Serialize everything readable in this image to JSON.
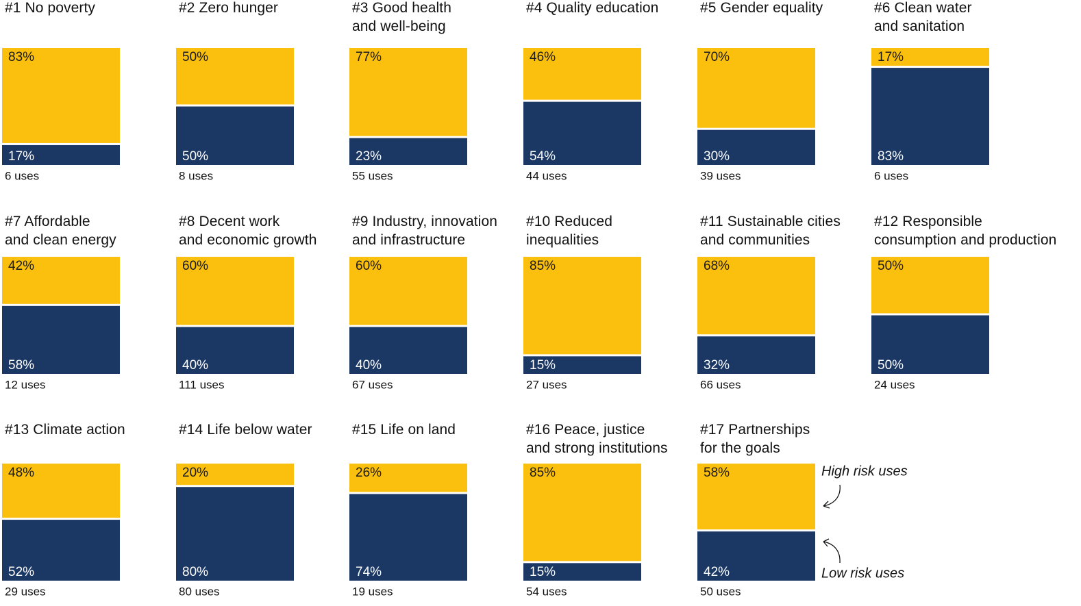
{
  "chart_data": [
    {
      "type": "bar",
      "title": "#1 No poverty",
      "note": "6 uses",
      "ylim": [
        0,
        100
      ],
      "series": [
        {
          "color": "#fbc00e",
          "values": [
            83
          ],
          "value_labels": [
            "83%"
          ]
        },
        {
          "color": "#1b3764",
          "values": [
            17
          ],
          "value_labels": [
            "17%"
          ]
        }
      ]
    },
    {
      "type": "bar",
      "title": "#2 Zero hunger",
      "note": "8 uses",
      "ylim": [
        0,
        100
      ],
      "series": [
        {
          "color": "#fbc00e",
          "values": [
            50
          ],
          "value_labels": [
            "50%"
          ]
        },
        {
          "color": "#1b3764",
          "values": [
            50
          ],
          "value_labels": [
            "50%"
          ]
        }
      ]
    },
    {
      "type": "bar",
      "title": "#3 Good health\nand well-being",
      "note": "55 uses",
      "ylim": [
        0,
        100
      ],
      "series": [
        {
          "color": "#fbc00e",
          "values": [
            77
          ],
          "value_labels": [
            "77%"
          ]
        },
        {
          "color": "#1b3764",
          "values": [
            23
          ],
          "value_labels": [
            "23%"
          ]
        }
      ]
    },
    {
      "type": "bar",
      "title": "#4 Quality education",
      "note": "44 uses",
      "ylim": [
        0,
        100
      ],
      "series": [
        {
          "color": "#fbc00e",
          "values": [
            46
          ],
          "value_labels": [
            "46%"
          ]
        },
        {
          "color": "#1b3764",
          "values": [
            54
          ],
          "value_labels": [
            "54%"
          ]
        }
      ]
    },
    {
      "type": "bar",
      "title": "#5 Gender equality",
      "note": "39 uses",
      "ylim": [
        0,
        100
      ],
      "series": [
        {
          "color": "#fbc00e",
          "values": [
            70
          ],
          "value_labels": [
            "70%"
          ]
        },
        {
          "color": "#1b3764",
          "values": [
            30
          ],
          "value_labels": [
            "30%"
          ]
        }
      ]
    },
    {
      "type": "bar",
      "title": "#6 Clean water\nand sanitation",
      "note": "6 uses",
      "ylim": [
        0,
        100
      ],
      "series": [
        {
          "color": "#fbc00e",
          "values": [
            17
          ],
          "value_labels": [
            "17%"
          ]
        },
        {
          "color": "#1b3764",
          "values": [
            83
          ],
          "value_labels": [
            "83%"
          ]
        }
      ]
    },
    {
      "type": "bar",
      "title": "#7 Affordable\nand clean energy",
      "note": "12 uses",
      "ylim": [
        0,
        100
      ],
      "series": [
        {
          "color": "#fbc00e",
          "values": [
            42
          ],
          "value_labels": [
            "42%"
          ]
        },
        {
          "color": "#1b3764",
          "values": [
            58
          ],
          "value_labels": [
            "58%"
          ]
        }
      ]
    },
    {
      "type": "bar",
      "title": "#8 Decent work\nand economic growth",
      "note": "111 uses",
      "ylim": [
        0,
        100
      ],
      "series": [
        {
          "color": "#fbc00e",
          "values": [
            60
          ],
          "value_labels": [
            "60%"
          ]
        },
        {
          "color": "#1b3764",
          "values": [
            40
          ],
          "value_labels": [
            "40%"
          ]
        }
      ]
    },
    {
      "type": "bar",
      "title": "#9 Industry, innovation\nand infrastructure",
      "note": "67 uses",
      "ylim": [
        0,
        100
      ],
      "series": [
        {
          "color": "#fbc00e",
          "values": [
            60
          ],
          "value_labels": [
            "60%"
          ]
        },
        {
          "color": "#1b3764",
          "values": [
            40
          ],
          "value_labels": [
            "40%"
          ]
        }
      ]
    },
    {
      "type": "bar",
      "title": "#10 Reduced\ninequalities",
      "note": "27 uses",
      "ylim": [
        0,
        100
      ],
      "series": [
        {
          "color": "#fbc00e",
          "values": [
            85
          ],
          "value_labels": [
            "85%"
          ]
        },
        {
          "color": "#1b3764",
          "values": [
            15
          ],
          "value_labels": [
            "15%"
          ]
        }
      ]
    },
    {
      "type": "bar",
      "title": "#11 Sustainable cities\nand communities",
      "note": "66 uses",
      "ylim": [
        0,
        100
      ],
      "series": [
        {
          "color": "#fbc00e",
          "values": [
            68
          ],
          "value_labels": [
            "68%"
          ]
        },
        {
          "color": "#1b3764",
          "values": [
            32
          ],
          "value_labels": [
            "32%"
          ]
        }
      ]
    },
    {
      "type": "bar",
      "title": "#12 Responsible\nconsumption and production",
      "note": "24 uses",
      "ylim": [
        0,
        100
      ],
      "series": [
        {
          "color": "#fbc00e",
          "values": [
            50
          ],
          "value_labels": [
            "50%"
          ]
        },
        {
          "color": "#1b3764",
          "values": [
            50
          ],
          "value_labels": [
            "50%"
          ]
        }
      ]
    },
    {
      "type": "bar",
      "title": "#13 Climate action",
      "note": "29 uses",
      "ylim": [
        0,
        100
      ],
      "series": [
        {
          "color": "#fbc00e",
          "values": [
            48
          ],
          "value_labels": [
            "48%"
          ]
        },
        {
          "color": "#1b3764",
          "values": [
            52
          ],
          "value_labels": [
            "52%"
          ]
        }
      ]
    },
    {
      "type": "bar",
      "title": "#14 Life below water",
      "note": "80 uses",
      "ylim": [
        0,
        100
      ],
      "series": [
        {
          "color": "#fbc00e",
          "values": [
            20
          ],
          "value_labels": [
            "20%"
          ]
        },
        {
          "color": "#1b3764",
          "values": [
            80
          ],
          "value_labels": [
            "80%"
          ]
        }
      ]
    },
    {
      "type": "bar",
      "title": "#15 Life on land",
      "note": "19 uses",
      "ylim": [
        0,
        100
      ],
      "series": [
        {
          "color": "#fbc00e",
          "values": [
            26
          ],
          "value_labels": [
            "26%"
          ]
        },
        {
          "color": "#1b3764",
          "values": [
            74
          ],
          "value_labels": [
            "74%"
          ]
        }
      ]
    },
    {
      "type": "bar",
      "title": "#16 Peace, justice\nand strong institutions",
      "note": "54 uses",
      "ylim": [
        0,
        100
      ],
      "series": [
        {
          "color": "#fbc00e",
          "values": [
            85
          ],
          "value_labels": [
            "85%"
          ]
        },
        {
          "color": "#1b3764",
          "values": [
            15
          ],
          "value_labels": [
            "15%"
          ]
        }
      ]
    },
    {
      "type": "bar",
      "title": "#17 Partnerships\nfor the goals",
      "note": "50 uses",
      "ylim": [
        0,
        100
      ],
      "series": [
        {
          "name": "High risk uses",
          "color": "#fbc00e",
          "values": [
            58
          ],
          "value_labels": [
            "58%"
          ]
        },
        {
          "name": "Low risk uses",
          "color": "#1b3764",
          "values": [
            42
          ],
          "value_labels": [
            "42%"
          ]
        }
      ]
    }
  ]
}
